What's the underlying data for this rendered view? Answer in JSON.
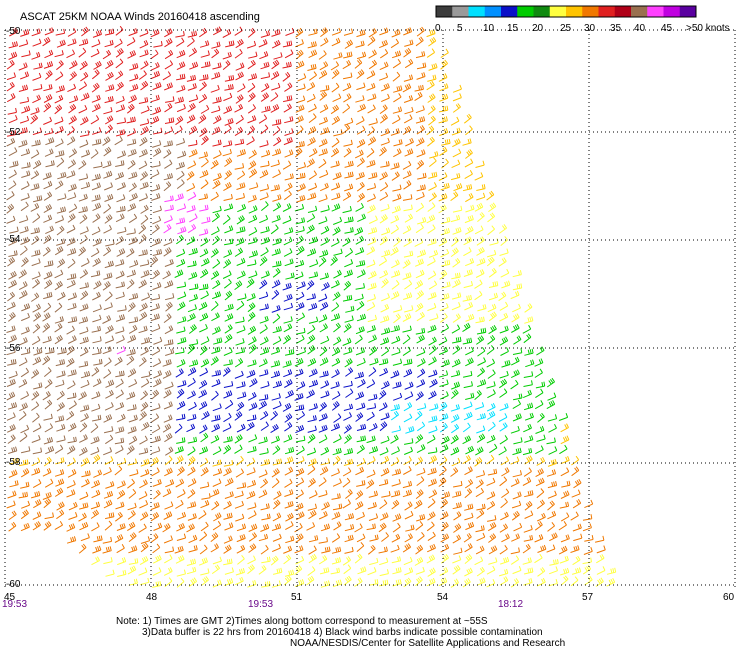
{
  "title": "ASCAT 25KM NOAA Winds 20160418 ascending",
  "colorbar": {
    "colors": [
      "#3c3c3c",
      "#9a9a9a",
      "#00e0ff",
      "#0090ff",
      "#0a10c8",
      "#00cc00",
      "#108a10",
      "#ffff40",
      "#ffc400",
      "#f07800",
      "#e02020",
      "#b00018",
      "#9a7050",
      "#ff40ff",
      "#c000e0",
      "#5a00a0"
    ],
    "labels": [
      "0",
      "5",
      "10",
      "15",
      "20",
      "25",
      "30",
      "35",
      "40",
      "45",
      ">50 knots"
    ]
  },
  "axes": {
    "lat_labels": [
      "-50",
      "-52",
      "-54",
      "-56",
      "-58",
      "-60"
    ],
    "lon_labels": [
      "45",
      "48",
      "51",
      "54",
      "57",
      "60"
    ]
  },
  "times": [
    "19:53",
    "19:53",
    "18:12"
  ],
  "notes": [
    "Note: 1) Times are GMT 2)Times along bottom correspond to measurement at ~55S",
    "3)Data buffer is 22 hrs from 20160418 4) Black wind barbs indicate possible contamination",
    "NOAA/NESDIS/Center for Satellite Applications and Research"
  ]
}
